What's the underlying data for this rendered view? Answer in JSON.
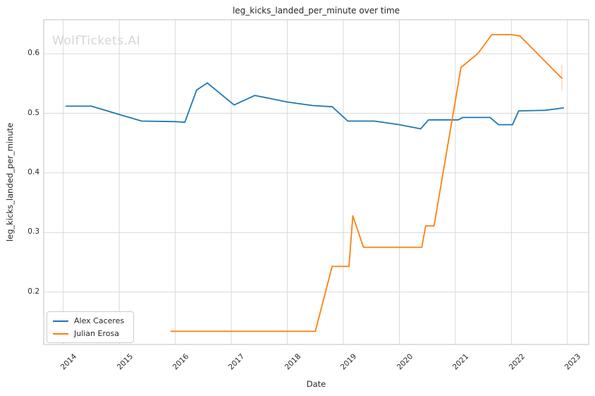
{
  "chart_data": {
    "type": "line",
    "title": "leg_kicks_landed_per_minute over time",
    "xlabel": "Date",
    "ylabel": "leg_kicks_landed_per_minute",
    "watermark": "WolfTickets.AI",
    "grid": true,
    "legend_position": "lower left",
    "xlim": [
      2013.65,
      2023.38
    ],
    "ylim": [
      0.112,
      0.657
    ],
    "x_ticks": [
      2014,
      2015,
      2016,
      2017,
      2018,
      2019,
      2020,
      2021,
      2022,
      2023
    ],
    "y_ticks": [
      0.2,
      0.3,
      0.4,
      0.5,
      0.6
    ],
    "grid_color": "#d9d9d9",
    "spine_color": "#cccccc",
    "series": [
      {
        "name": "Alex Caceres",
        "color": "#1f77b4",
        "points": [
          [
            2014.05,
            0.512
          ],
          [
            2014.5,
            0.512
          ],
          [
            2015.0,
            0.498
          ],
          [
            2015.4,
            0.487
          ],
          [
            2016.0,
            0.486
          ],
          [
            2016.17,
            0.485
          ],
          [
            2016.38,
            0.539
          ],
          [
            2016.57,
            0.551
          ],
          [
            2017.05,
            0.514
          ],
          [
            2017.42,
            0.53
          ],
          [
            2018.0,
            0.519
          ],
          [
            2018.45,
            0.513
          ],
          [
            2018.8,
            0.511
          ],
          [
            2019.08,
            0.487
          ],
          [
            2019.55,
            0.487
          ],
          [
            2020.0,
            0.481
          ],
          [
            2020.38,
            0.474
          ],
          [
            2020.52,
            0.489
          ],
          [
            2021.05,
            0.489
          ],
          [
            2021.13,
            0.493
          ],
          [
            2021.62,
            0.493
          ],
          [
            2021.77,
            0.481
          ],
          [
            2022.02,
            0.481
          ],
          [
            2022.13,
            0.504
          ],
          [
            2022.6,
            0.505
          ],
          [
            2022.93,
            0.509
          ]
        ]
      },
      {
        "name": "Julian Erosa",
        "color": "#ff7f0e",
        "points": [
          [
            2015.92,
            0.134
          ],
          [
            2018.5,
            0.134
          ],
          [
            2018.8,
            0.243
          ],
          [
            2019.1,
            0.243
          ],
          [
            2019.17,
            0.328
          ],
          [
            2019.36,
            0.275
          ],
          [
            2020.4,
            0.275
          ],
          [
            2020.47,
            0.311
          ],
          [
            2020.62,
            0.311
          ],
          [
            2021.1,
            0.577
          ],
          [
            2021.4,
            0.6
          ],
          [
            2021.65,
            0.632
          ],
          [
            2022.0,
            0.632
          ],
          [
            2022.15,
            0.63
          ],
          [
            2022.9,
            0.559
          ]
        ],
        "end_bar": {
          "x": 2022.9,
          "y1": 0.538,
          "y2": 0.581
        }
      }
    ]
  }
}
